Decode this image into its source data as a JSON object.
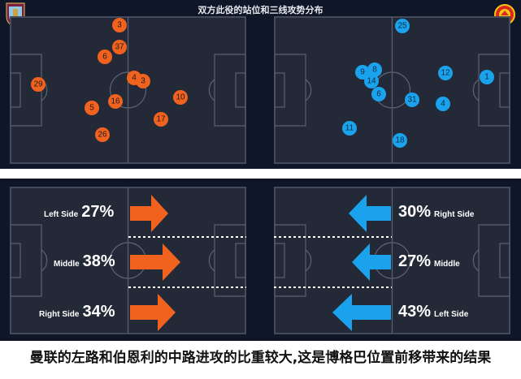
{
  "title": "双方此役的站位和三线攻势分布",
  "crests": {
    "home": "burnley-crest-icon",
    "away": "manchester-united-crest-icon"
  },
  "colors": {
    "home": "#f2621f",
    "away": "#1aa3ec"
  },
  "positions": {
    "home": [
      "3",
      "37",
      "6",
      "4",
      "3",
      "29",
      "5",
      "16",
      "10",
      "17",
      "26"
    ],
    "away": [
      "25",
      "9",
      "8",
      "14",
      "6",
      "31",
      "12",
      "1",
      "4",
      "11",
      "18"
    ]
  },
  "attack_share": {
    "home": [
      {
        "label": "Left Side",
        "value": "27%"
      },
      {
        "label": "Middle",
        "value": "38%"
      },
      {
        "label": "Right Side",
        "value": "34%"
      }
    ],
    "away": [
      {
        "label": "Right Side",
        "value": "30%"
      },
      {
        "label": "Middle",
        "value": "27%"
      },
      {
        "label": "Left Side",
        "value": "43%"
      }
    ]
  },
  "caption": "曼联的左路和伯恩利的中路进攻的比重较大,这是博格巴位置前移带来的结果"
}
